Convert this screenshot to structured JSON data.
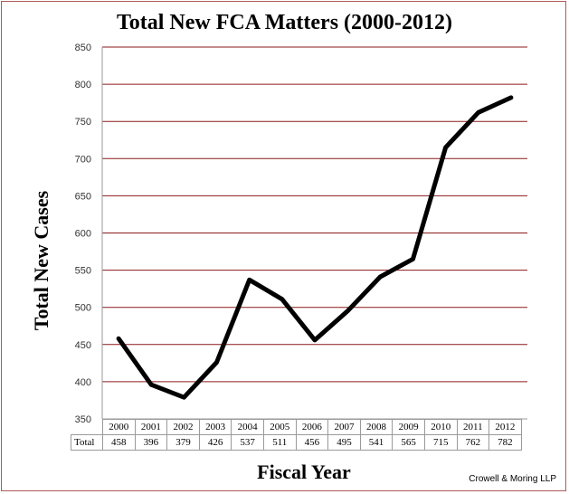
{
  "chart_data": {
    "type": "line",
    "title": "Total New FCA Matters (2000-2012)",
    "xlabel": "Fiscal Year",
    "ylabel": "Total New Cases",
    "categories": [
      "2000",
      "2001",
      "2002",
      "2003",
      "2004",
      "2005",
      "2006",
      "2007",
      "2008",
      "2009",
      "2010",
      "2011",
      "2012"
    ],
    "series": [
      {
        "name": "Total",
        "values": [
          458,
          396,
          379,
          426,
          537,
          511,
          456,
          495,
          541,
          565,
          715,
          762,
          782
        ]
      }
    ],
    "ylim": [
      350,
      850
    ],
    "yticks": [
      "850",
      "800",
      "750",
      "700",
      "650",
      "600",
      "550",
      "500",
      "450",
      "400",
      "350"
    ],
    "grid": true,
    "colors": {
      "line": "#000000",
      "grid": "#8b1a1a",
      "frame": "#b05a5a"
    },
    "table_row_label": "Total"
  },
  "credit": "Crowell & Moring LLP"
}
